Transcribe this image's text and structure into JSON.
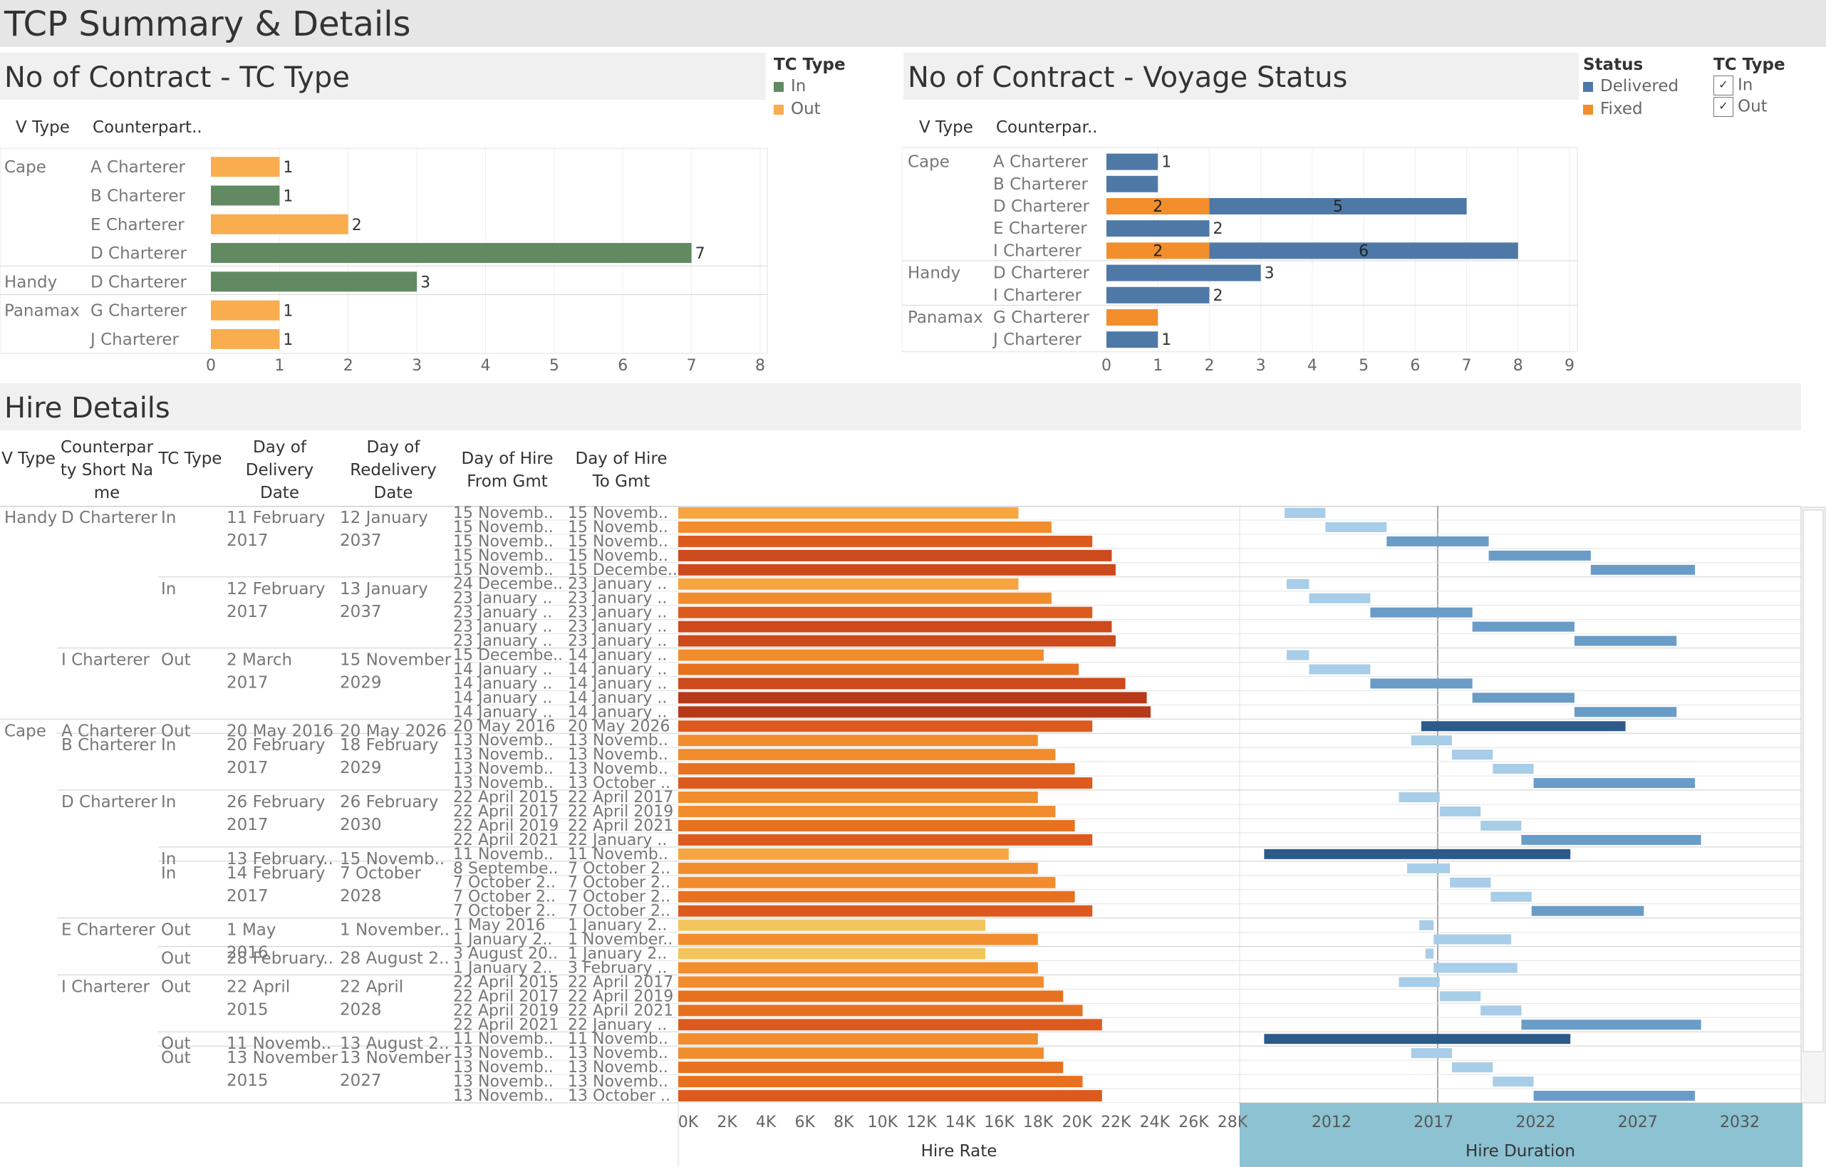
{
  "dashboard": {
    "title": "TCP Summary & Details"
  },
  "colors": {
    "in": "#618a63",
    "out": "#f9ad4f",
    "delivered": "#4e79a7",
    "fixed": "#f28e2b",
    "duration_footer": "#8cc2d1"
  },
  "legend_tc": {
    "title": "TC Type",
    "items": [
      {
        "label": "In",
        "color": "#618a63"
      },
      {
        "label": "Out",
        "color": "#f9ad4f"
      }
    ]
  },
  "legend_status": {
    "title": "Status",
    "items": [
      {
        "label": "Delivered",
        "color": "#4e79a7"
      },
      {
        "label": "Fixed",
        "color": "#f28e2b"
      }
    ]
  },
  "filter_tc": {
    "title": "TC Type",
    "items": [
      {
        "label": "In",
        "checked": "✓"
      },
      {
        "label": "Out",
        "checked": "✓"
      }
    ]
  },
  "panel1": {
    "title": "No of Contract - TC Type",
    "col_vtype": "V Type",
    "col_cp": "Counterpart.."
  },
  "panel2": {
    "title": "No of Contract - Voyage Status",
    "col_vtype": "V Type",
    "col_cp": "Counterpar.."
  },
  "hire": {
    "title": "Hire Details",
    "headers": [
      "V Type",
      "Counterpar ty Short Na me",
      "TC Type",
      "Day of Delivery Date",
      "Day of Redelivery Date",
      "Day of Hire From Gmt",
      "Day of Hire To Gmt"
    ],
    "footer_rate": "Hire Rate",
    "footer_duration": "Hire Duration"
  },
  "chart_data": [
    {
      "type": "bar",
      "title": "No of Contract - TC Type",
      "xlim": [
        0,
        8
      ],
      "xticks": [
        "0",
        "1",
        "2",
        "3",
        "4",
        "5",
        "6",
        "7",
        "8"
      ],
      "groups": [
        "Cape",
        "Handy",
        "Panamax"
      ],
      "rows": [
        {
          "vtype": "Cape",
          "cp": "A Charterer",
          "tc": "Out",
          "value": 1
        },
        {
          "vtype": "",
          "cp": "B Charterer",
          "tc": "In",
          "value": 1
        },
        {
          "vtype": "",
          "cp": "E Charterer",
          "tc": "Out",
          "value": 2
        },
        {
          "vtype": "",
          "cp": "D Charterer",
          "tc": "In",
          "value": 7
        },
        {
          "vtype": "Handy",
          "cp": "D Charterer",
          "tc": "In",
          "value": 3
        },
        {
          "vtype": "Panamax",
          "cp": "G Charterer",
          "tc": "Out",
          "value": 1
        },
        {
          "vtype": "",
          "cp": "J Charterer",
          "tc": "Out",
          "value": 1
        }
      ]
    },
    {
      "type": "bar",
      "stacked": true,
      "title": "No of Contract - Voyage Status",
      "xlim": [
        0,
        9
      ],
      "xticks": [
        "0",
        "1",
        "2",
        "3",
        "4",
        "5",
        "6",
        "7",
        "8",
        "9"
      ],
      "rows": [
        {
          "vtype": "Cape",
          "cp": "A Charterer",
          "fixed": 0,
          "delivered": 1,
          "label": "1"
        },
        {
          "vtype": "",
          "cp": "B Charterer",
          "fixed": 0,
          "delivered": 1,
          "label": ""
        },
        {
          "vtype": "",
          "cp": "D Charterer",
          "fixed": 2,
          "delivered": 5,
          "fixed_label": "2",
          "delivered_label": "5"
        },
        {
          "vtype": "",
          "cp": "E Charterer",
          "fixed": 0,
          "delivered": 2,
          "label": "2"
        },
        {
          "vtype": "",
          "cp": "I Charterer",
          "fixed": 2,
          "delivered": 6,
          "fixed_label": "2",
          "delivered_label": "6"
        },
        {
          "vtype": "Handy",
          "cp": "D Charterer",
          "fixed": 0,
          "delivered": 3,
          "label": "3"
        },
        {
          "vtype": "",
          "cp": "I Charterer",
          "fixed": 0,
          "delivered": 2,
          "label": "2"
        },
        {
          "vtype": "Panamax",
          "cp": "G Charterer",
          "fixed": 1,
          "delivered": 0,
          "label": ""
        },
        {
          "vtype": "",
          "cp": "J Charterer",
          "fixed": 0,
          "delivered": 1,
          "label": "1"
        }
      ]
    },
    {
      "type": "bar",
      "title": "Hire Rate",
      "xlim": [
        0,
        28000
      ],
      "xticks": [
        "0K",
        "2K",
        "4K",
        "6K",
        "8K",
        "10K",
        "12K",
        "14K",
        "16K",
        "18K",
        "20K",
        "22K",
        "24K",
        "26K",
        "28K"
      ]
    },
    {
      "type": "gantt",
      "title": "Hire Duration",
      "xlim": [
        2007.5,
        2035
      ],
      "xticks": [
        "2012",
        "2017",
        "2022",
        "2027",
        "2032"
      ],
      "reference_line": 2017.2
    }
  ],
  "hire_rows": [
    {
      "group": "Handy|D|In|1",
      "vtype": "Handy",
      "cp": "D Charterer",
      "tc": "In",
      "del": "11 February 2017",
      "redel": "12 January 2037",
      "from": "15 Novemb..",
      "to": "15 Novemb..",
      "rate": 17500,
      "start": 2009.7,
      "end": 2011.7,
      "shade": "light"
    },
    {
      "group": "",
      "vtype": "",
      "cp": "",
      "tc": "",
      "del": "",
      "redel": "",
      "from": "15 Novemb..",
      "to": "15 Novemb..",
      "rate": 19200,
      "start": 2011.7,
      "end": 2014.7,
      "shade": "light"
    },
    {
      "group": "",
      "vtype": "",
      "cp": "",
      "tc": "",
      "del": "",
      "redel": "",
      "from": "15 Novemb..",
      "to": "15 Novemb..",
      "rate": 21300,
      "start": 2014.7,
      "end": 2019.7,
      "shade": "mid"
    },
    {
      "group": "",
      "vtype": "",
      "cp": "",
      "tc": "",
      "del": "",
      "redel": "",
      "from": "15 Novemb..",
      "to": "15 Novemb..",
      "rate": 22300,
      "start": 2019.7,
      "end": 2024.7,
      "shade": "mid"
    },
    {
      "group": "",
      "vtype": "",
      "cp": "",
      "tc": "",
      "del": "",
      "redel": "",
      "from": "15 Novemb..",
      "to": "15 Decembe..",
      "rate": 22500,
      "start": 2024.7,
      "end": 2029.8,
      "shade": "mid"
    },
    {
      "group": "Handy|D|In|2",
      "vtype": "",
      "cp": "",
      "tc": "In",
      "del": "12 February 2017",
      "redel": "13 January 2037",
      "from": "24 Decembe..",
      "to": "23 January ..",
      "rate": 17500,
      "start": 2009.8,
      "end": 2010.9,
      "shade": "light"
    },
    {
      "group": "",
      "vtype": "",
      "cp": "",
      "tc": "",
      "del": "",
      "redel": "",
      "from": "23 January ..",
      "to": "23 January ..",
      "rate": 19200,
      "start": 2010.9,
      "end": 2013.9,
      "shade": "light"
    },
    {
      "group": "",
      "vtype": "",
      "cp": "",
      "tc": "",
      "del": "",
      "redel": "",
      "from": "23 January ..",
      "to": "23 January ..",
      "rate": 21300,
      "start": 2013.9,
      "end": 2018.9,
      "shade": "mid"
    },
    {
      "group": "",
      "vtype": "",
      "cp": "",
      "tc": "",
      "del": "",
      "redel": "",
      "from": "23 January ..",
      "to": "23 January ..",
      "rate": 22300,
      "start": 2018.9,
      "end": 2023.9,
      "shade": "mid"
    },
    {
      "group": "",
      "vtype": "",
      "cp": "",
      "tc": "",
      "del": "",
      "redel": "",
      "from": "23 January ..",
      "to": "23 January ..",
      "rate": 22500,
      "start": 2023.9,
      "end": 2028.9,
      "shade": "mid"
    },
    {
      "group": "Handy|I|Out",
      "vtype": "",
      "cp": "I Charterer",
      "tc": "Out",
      "del": "2 March 2017",
      "redel": "15 November 2029",
      "from": "15 Decembe..",
      "to": "14 January ..",
      "rate": 18800,
      "start": 2009.8,
      "end": 2010.9,
      "shade": "light"
    },
    {
      "group": "",
      "vtype": "",
      "cp": "",
      "tc": "",
      "del": "",
      "redel": "",
      "from": "14 January ..",
      "to": "14 January ..",
      "rate": 20600,
      "start": 2010.9,
      "end": 2013.9,
      "shade": "light"
    },
    {
      "group": "",
      "vtype": "",
      "cp": "",
      "tc": "",
      "del": "",
      "redel": "",
      "from": "14 January ..",
      "to": "14 January ..",
      "rate": 23000,
      "start": 2013.9,
      "end": 2018.9,
      "shade": "mid"
    },
    {
      "group": "",
      "vtype": "",
      "cp": "",
      "tc": "",
      "del": "",
      "redel": "",
      "from": "14 January ..",
      "to": "14 January ..",
      "rate": 24100,
      "start": 2018.9,
      "end": 2023.9,
      "shade": "mid"
    },
    {
      "group": "",
      "vtype": "",
      "cp": "",
      "tc": "",
      "del": "",
      "redel": "",
      "from": "14 January ..",
      "to": "14 January ..",
      "rate": 24300,
      "start": 2023.9,
      "end": 2028.9,
      "shade": "mid"
    },
    {
      "group": "Cape|A|Out",
      "vtype": "Cape",
      "cp": "A Charterer",
      "tc": "Out",
      "del": "20 May 2016",
      "redel": "20 May 2026",
      "from": "20 May 2016",
      "to": "20 May 2026",
      "rate": 21300,
      "start": 2016.4,
      "end": 2026.4,
      "shade": "dark"
    },
    {
      "group": "Cape|B|In",
      "vtype": "",
      "cp": "B Charterer",
      "tc": "In",
      "del": "20 February 2017",
      "redel": "18 February 2029",
      "from": "13 Novemb..",
      "to": "13 Novemb..",
      "rate": 18500,
      "start": 2015.9,
      "end": 2017.9,
      "shade": "light"
    },
    {
      "group": "",
      "vtype": "",
      "cp": "",
      "tc": "",
      "del": "",
      "redel": "",
      "from": "13 Novemb..",
      "to": "13 Novemb..",
      "rate": 19400,
      "start": 2017.9,
      "end": 2019.9,
      "shade": "light"
    },
    {
      "group": "",
      "vtype": "",
      "cp": "",
      "tc": "",
      "del": "",
      "redel": "",
      "from": "13 Novemb..",
      "to": "13 Novemb..",
      "rate": 20400,
      "start": 2019.9,
      "end": 2021.9,
      "shade": "light"
    },
    {
      "group": "",
      "vtype": "",
      "cp": "",
      "tc": "",
      "del": "",
      "redel": "",
      "from": "13 Novemb..",
      "to": "13 October ..",
      "rate": 21300,
      "start": 2021.9,
      "end": 2029.8,
      "shade": "mid"
    },
    {
      "group": "Cape|D|In|1",
      "vtype": "",
      "cp": "D Charterer",
      "tc": "In",
      "del": "26 February 2017",
      "redel": "26 February 2030",
      "from": "22 April 2015",
      "to": "22 April 2017",
      "rate": 18500,
      "start": 2015.3,
      "end": 2017.3,
      "shade": "light"
    },
    {
      "group": "",
      "vtype": "",
      "cp": "",
      "tc": "",
      "del": "",
      "redel": "",
      "from": "22 April 2017",
      "to": "22 April 2019",
      "rate": 19400,
      "start": 2017.3,
      "end": 2019.3,
      "shade": "light"
    },
    {
      "group": "",
      "vtype": "",
      "cp": "",
      "tc": "",
      "del": "",
      "redel": "",
      "from": "22 April 2019",
      "to": "22 April 2021",
      "rate": 20400,
      "start": 2019.3,
      "end": 2021.3,
      "shade": "light"
    },
    {
      "group": "",
      "vtype": "",
      "cp": "",
      "tc": "",
      "del": "",
      "redel": "",
      "from": "22 April 2021",
      "to": "22 January ..",
      "rate": 21300,
      "start": 2021.3,
      "end": 2030.1,
      "shade": "mid"
    },
    {
      "group": "Cape|D|In|2",
      "vtype": "",
      "cp": "",
      "tc": "In",
      "del": "13 February..",
      "redel": "15 Novemb..",
      "from": "11 Novemb..",
      "to": "11 Novemb..",
      "rate": 17000,
      "start": 2008.7,
      "end": 2023.7,
      "shade": "dark"
    },
    {
      "group": "Cape|D|In|3",
      "vtype": "",
      "cp": "",
      "tc": "In",
      "del": "14 February 2017",
      "redel": "7 October 2028",
      "from": "8 Septembe..",
      "to": "7 October 2..",
      "rate": 18500,
      "start": 2015.7,
      "end": 2017.8,
      "shade": "light"
    },
    {
      "group": "",
      "vtype": "",
      "cp": "",
      "tc": "",
      "del": "",
      "redel": "",
      "from": "7 October 2..",
      "to": "7 October 2..",
      "rate": 19400,
      "start": 2017.8,
      "end": 2019.8,
      "shade": "light"
    },
    {
      "group": "",
      "vtype": "",
      "cp": "",
      "tc": "",
      "del": "",
      "redel": "",
      "from": "7 October 2..",
      "to": "7 October 2..",
      "rate": 20400,
      "start": 2019.8,
      "end": 2021.8,
      "shade": "light"
    },
    {
      "group": "",
      "vtype": "",
      "cp": "",
      "tc": "",
      "del": "",
      "redel": "",
      "from": "7 October 2..",
      "to": "7 October 2..",
      "rate": 21300,
      "start": 2021.8,
      "end": 2027.3,
      "shade": "mid"
    },
    {
      "group": "Cape|E|Out|1",
      "vtype": "",
      "cp": "E Charterer",
      "tc": "Out",
      "del": "1 May 2016",
      "redel": "1 November..",
      "from": "1 May 2016",
      "to": "1 January 2..",
      "rate": 15800,
      "start": 2016.3,
      "end": 2017.0,
      "shade": "light"
    },
    {
      "group": "",
      "vtype": "",
      "cp": "",
      "tc": "",
      "del": "",
      "redel": "",
      "from": "1 January 2..",
      "to": "1 November..",
      "rate": 18500,
      "start": 2017.0,
      "end": 2020.8,
      "shade": "light"
    },
    {
      "group": "Cape|E|Out|2",
      "vtype": "",
      "cp": "",
      "tc": "Out",
      "del": "28 February..",
      "redel": "28 August 2..",
      "from": "3 August 20..",
      "to": "1 January 2..",
      "rate": 15800,
      "start": 2016.6,
      "end": 2017.0,
      "shade": "light"
    },
    {
      "group": "",
      "vtype": "",
      "cp": "",
      "tc": "",
      "del": "",
      "redel": "",
      "from": "1 January 2..",
      "to": "3 February ..",
      "rate": 18500,
      "start": 2017.0,
      "end": 2021.1,
      "shade": "light"
    },
    {
      "group": "Cape|I|Out|1",
      "vtype": "",
      "cp": "I Charterer",
      "tc": "Out",
      "del": "22 April 2015",
      "redel": "22 April 2028",
      "from": "22 April 2015",
      "to": "22 April 2017",
      "rate": 18800,
      "start": 2015.3,
      "end": 2017.3,
      "shade": "light"
    },
    {
      "group": "",
      "vtype": "",
      "cp": "",
      "tc": "",
      "del": "",
      "redel": "",
      "from": "22 April 2017",
      "to": "22 April 2019",
      "rate": 19800,
      "start": 2017.3,
      "end": 2019.3,
      "shade": "light"
    },
    {
      "group": "",
      "vtype": "",
      "cp": "",
      "tc": "",
      "del": "",
      "redel": "",
      "from": "22 April 2019",
      "to": "22 April 2021",
      "rate": 20800,
      "start": 2019.3,
      "end": 2021.3,
      "shade": "light"
    },
    {
      "group": "",
      "vtype": "",
      "cp": "",
      "tc": "",
      "del": "",
      "redel": "",
      "from": "22 April 2021",
      "to": "22 January ..",
      "rate": 21800,
      "start": 2021.3,
      "end": 2030.1,
      "shade": "mid"
    },
    {
      "group": "Cape|I|Out|2",
      "vtype": "",
      "cp": "",
      "tc": "Out",
      "del": "11 Novemb..",
      "redel": "13 August 2..",
      "from": "11 Novemb..",
      "to": "11 Novemb..",
      "rate": 18500,
      "start": 2008.7,
      "end": 2023.7,
      "shade": "dark"
    },
    {
      "group": "Cape|I|Out|3",
      "vtype": "",
      "cp": "",
      "tc": "Out",
      "del": "13 November 2015",
      "redel": "13 November 2027",
      "from": "13 Novemb..",
      "to": "13 Novemb..",
      "rate": 18800,
      "start": 2015.9,
      "end": 2017.9,
      "shade": "light"
    },
    {
      "group": "",
      "vtype": "",
      "cp": "",
      "tc": "",
      "del": "",
      "redel": "",
      "from": "13 Novemb..",
      "to": "13 Novemb..",
      "rate": 19800,
      "start": 2017.9,
      "end": 2019.9,
      "shade": "light"
    },
    {
      "group": "",
      "vtype": "",
      "cp": "",
      "tc": "",
      "del": "",
      "redel": "",
      "from": "13 Novemb..",
      "to": "13 Novemb..",
      "rate": 20800,
      "start": 2019.9,
      "end": 2021.9,
      "shade": "light"
    },
    {
      "group": "",
      "vtype": "",
      "cp": "",
      "tc": "",
      "del": "",
      "redel": "",
      "from": "13 Novemb..",
      "to": "13 October ..",
      "rate": 21800,
      "start": 2021.9,
      "end": 2029.8,
      "shade": "mid"
    }
  ]
}
